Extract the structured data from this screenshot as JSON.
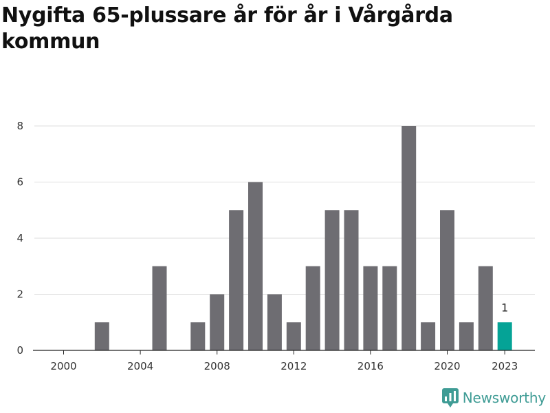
{
  "chart_data": {
    "type": "bar",
    "title": "Nygifta 65-plussare år för år i Vårgårda kommun",
    "xlabel": "",
    "ylabel": "",
    "categories": [
      2000,
      2001,
      2002,
      2003,
      2004,
      2005,
      2006,
      2007,
      2008,
      2009,
      2010,
      2011,
      2012,
      2013,
      2014,
      2015,
      2016,
      2017,
      2018,
      2019,
      2020,
      2021,
      2022,
      2023
    ],
    "values": [
      0,
      0,
      1,
      0,
      0,
      3,
      0,
      1,
      2,
      5,
      6,
      2,
      1,
      3,
      5,
      5,
      3,
      3,
      8,
      1,
      5,
      1,
      3,
      1
    ],
    "x_ticks": [
      2000,
      2004,
      2008,
      2012,
      2016,
      2020,
      2023
    ],
    "y_ticks": [
      0,
      2,
      4,
      6,
      8
    ],
    "ylim": [
      0,
      8
    ],
    "grid": true,
    "legend": "none",
    "highlight": {
      "category": 2023,
      "label": "1"
    },
    "colors": {
      "bar": "#6e6d72",
      "highlight": "#05a396",
      "grid": "#dddddd",
      "axis": "#222222"
    }
  },
  "brand": {
    "name": "Newsworthy",
    "icon": "newsworthy-logo-icon",
    "color": "#3f9c95"
  }
}
